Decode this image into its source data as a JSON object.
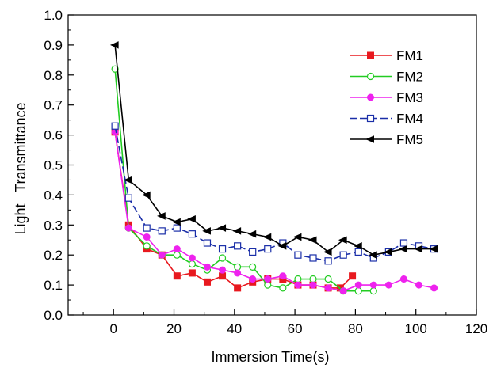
{
  "chart_data": {
    "type": "line",
    "xlabel": "Immersion Time(s)",
    "ylabel": "Light   Transmittance",
    "xlim": [
      -15,
      120
    ],
    "ylim": [
      0,
      1.0
    ],
    "x_ticks": [
      0,
      20,
      40,
      60,
      80,
      100,
      120
    ],
    "y_ticks": [
      0.0,
      0.1,
      0.2,
      0.3,
      0.4,
      0.5,
      0.6,
      0.7,
      0.8,
      0.9,
      1.0
    ],
    "x_tick_labels": [
      "0",
      "20",
      "40",
      "60",
      "80",
      "100",
      "120"
    ],
    "y_tick_labels": [
      "0.0",
      "0.1",
      "0.2",
      "0.3",
      "0.4",
      "0.5",
      "0.6",
      "0.7",
      "0.8",
      "0.9",
      "1.0"
    ],
    "grid": false,
    "legend_position": "top-right",
    "series": [
      {
        "name": "FM1",
        "color": "#e8191f",
        "marker": "filled-square",
        "x": [
          0.5,
          5,
          11,
          16,
          21,
          26,
          31,
          36,
          41,
          46,
          51,
          56,
          61,
          66,
          71,
          75,
          79
        ],
        "y": [
          0.61,
          0.3,
          0.22,
          0.2,
          0.13,
          0.14,
          0.11,
          0.13,
          0.09,
          0.11,
          0.12,
          0.12,
          0.1,
          0.1,
          0.09,
          0.09,
          0.13
        ]
      },
      {
        "name": "FM2",
        "color": "#22cc22",
        "marker": "open-circle",
        "x": [
          0.5,
          5,
          11,
          16,
          21,
          26,
          31,
          36,
          41,
          46,
          51,
          56,
          61,
          66,
          71,
          76,
          81,
          86
        ],
        "y": [
          0.82,
          0.29,
          0.23,
          0.2,
          0.2,
          0.17,
          0.15,
          0.19,
          0.16,
          0.16,
          0.1,
          0.09,
          0.12,
          0.12,
          0.12,
          0.08,
          0.08,
          0.08
        ]
      },
      {
        "name": "FM3",
        "color": "#ee22ee",
        "marker": "filled-circle",
        "x": [
          0.5,
          5,
          11,
          16,
          21,
          26,
          31,
          36,
          41,
          46,
          51,
          56,
          61,
          66,
          71,
          76,
          81,
          86,
          91,
          96,
          101,
          106
        ],
        "y": [
          0.61,
          0.29,
          0.26,
          0.2,
          0.22,
          0.19,
          0.16,
          0.15,
          0.14,
          0.12,
          0.12,
          0.13,
          0.1,
          0.1,
          0.09,
          0.08,
          0.1,
          0.1,
          0.1,
          0.12,
          0.1,
          0.09
        ]
      },
      {
        "name": "FM4",
        "color": "#1a2ea8",
        "marker": "open-square",
        "x": [
          0.5,
          5,
          11,
          16,
          21,
          26,
          31,
          36,
          41,
          46,
          51,
          56,
          61,
          66,
          71,
          76,
          81,
          86,
          91,
          96,
          101,
          106
        ],
        "y": [
          0.63,
          0.39,
          0.29,
          0.28,
          0.29,
          0.27,
          0.24,
          0.22,
          0.23,
          0.21,
          0.22,
          0.24,
          0.2,
          0.19,
          0.18,
          0.2,
          0.21,
          0.19,
          0.21,
          0.24,
          0.23,
          0.22
        ]
      },
      {
        "name": "FM5",
        "color": "#000000",
        "marker": "left-triangle",
        "x": [
          0.5,
          5,
          11,
          16,
          21,
          26,
          31,
          36,
          41,
          46,
          51,
          56,
          61,
          66,
          71,
          76,
          81,
          86,
          91,
          96,
          101,
          106
        ],
        "y": [
          0.9,
          0.45,
          0.4,
          0.33,
          0.31,
          0.32,
          0.28,
          0.29,
          0.28,
          0.27,
          0.26,
          0.23,
          0.26,
          0.25,
          0.21,
          0.25,
          0.23,
          0.2,
          0.21,
          0.22,
          0.22,
          0.22
        ]
      }
    ]
  }
}
